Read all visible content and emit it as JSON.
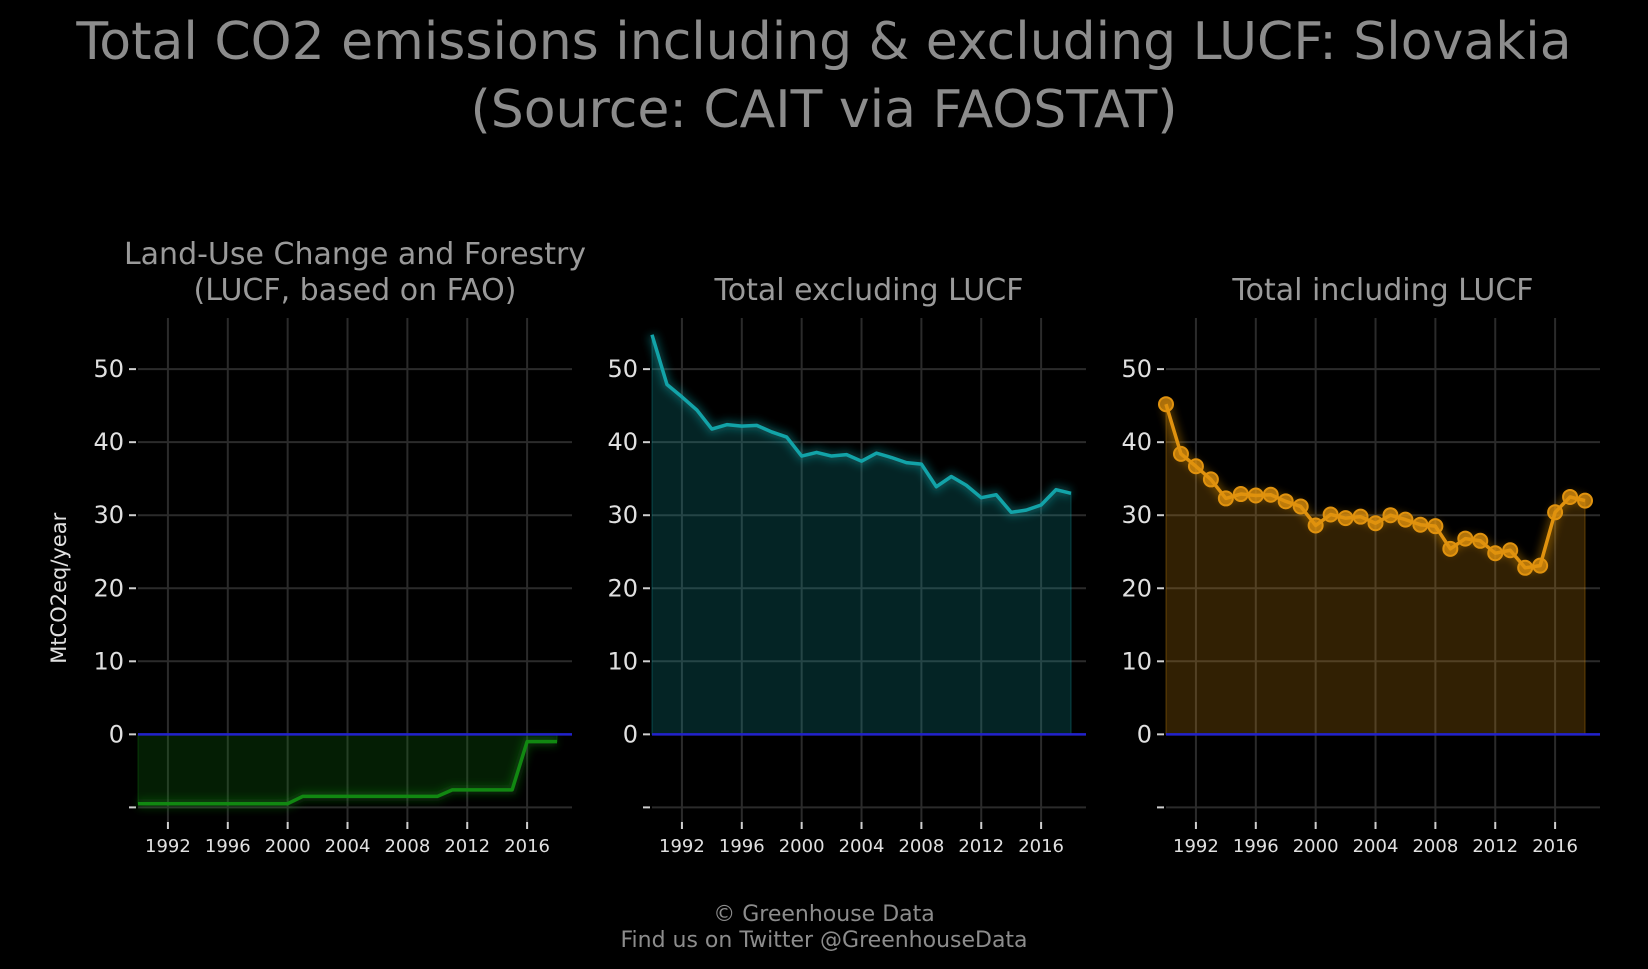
{
  "title": {
    "line1": "Total CO2 emissions including & excluding LUCF: Slovakia",
    "line2": "(Source: CAIT via FAOSTAT)"
  },
  "footer": {
    "line1": "© Greenhouse Data",
    "line2": "Find us on Twitter @GreenhouseData"
  },
  "colors": {
    "background": "#000000",
    "grid": "#2b2b2b",
    "zero_line": "#2222cc",
    "lucf": "#118811",
    "excl": "#12a3a8",
    "incl": "#e0920e"
  },
  "chart_data": [
    {
      "type": "area",
      "title_lines": [
        "Land-Use Change and Forestry",
        "(LUCF, based on FAO)"
      ],
      "ylabel": "MtCO2eq/year",
      "xlabel": "",
      "x_ticks": [
        1992,
        1996,
        2000,
        2004,
        2008,
        2012,
        2016
      ],
      "y_ticks": [
        -10,
        0,
        10,
        20,
        30,
        40,
        50
      ],
      "y_tick_labels": [
        "\u0010",
        "0",
        "10",
        "20",
        "30",
        "40",
        "50"
      ],
      "ylim": [
        -12,
        57
      ],
      "xlim": [
        1990,
        2019
      ],
      "grid": true,
      "markers": false,
      "series": [
        {
          "x": [
            1990,
            1991,
            1992,
            1993,
            1994,
            1995,
            1996,
            1997,
            1998,
            1999,
            2000,
            2001,
            2002,
            2003,
            2004,
            2005,
            2006,
            2007,
            2008,
            2009,
            2010,
            2011,
            2012,
            2013,
            2014,
            2015,
            2016,
            2017,
            2018
          ],
          "values": [
            -9.5,
            -9.5,
            -9.5,
            -9.5,
            -9.5,
            -9.5,
            -9.5,
            -9.5,
            -9.5,
            -9.5,
            -9.5,
            -8.5,
            -8.5,
            -8.5,
            -8.5,
            -8.5,
            -8.5,
            -8.5,
            -8.5,
            -8.5,
            -8.5,
            -7.6,
            -7.6,
            -7.6,
            -7.6,
            -7.6,
            -1.0,
            -1.0,
            -1.0
          ]
        }
      ]
    },
    {
      "type": "area",
      "title_lines": [
        "Total excluding LUCF"
      ],
      "ylabel": "",
      "xlabel": "",
      "x_ticks": [
        1992,
        1996,
        2000,
        2004,
        2008,
        2012,
        2016
      ],
      "y_ticks": [
        -10,
        0,
        10,
        20,
        30,
        40,
        50
      ],
      "y_tick_labels": [
        "\u0010",
        "0",
        "10",
        "20",
        "30",
        "40",
        "50"
      ],
      "ylim": [
        -12,
        57
      ],
      "xlim": [
        1990,
        2019
      ],
      "grid": true,
      "markers": false,
      "series": [
        {
          "x": [
            1990,
            1991,
            1992,
            1993,
            1994,
            1995,
            1996,
            1997,
            1998,
            1999,
            2000,
            2001,
            2002,
            2003,
            2004,
            2005,
            2006,
            2007,
            2008,
            2009,
            2010,
            2011,
            2012,
            2013,
            2014,
            2015,
            2016,
            2017,
            2018
          ],
          "values": [
            54.7,
            47.9,
            46.2,
            44.4,
            41.8,
            42.4,
            42.2,
            42.3,
            41.4,
            40.7,
            38.1,
            38.6,
            38.1,
            38.3,
            37.4,
            38.5,
            37.9,
            37.2,
            37.0,
            33.9,
            35.3,
            34.1,
            32.4,
            32.8,
            30.4,
            30.7,
            31.4,
            33.5,
            33.0
          ]
        }
      ]
    },
    {
      "type": "area",
      "title_lines": [
        "Total including LUCF"
      ],
      "ylabel": "",
      "xlabel": "",
      "x_ticks": [
        1992,
        1996,
        2000,
        2004,
        2008,
        2012,
        2016
      ],
      "y_ticks": [
        -10,
        0,
        10,
        20,
        30,
        40,
        50
      ],
      "y_tick_labels": [
        "\u0010",
        "0",
        "10",
        "20",
        "30",
        "40",
        "50"
      ],
      "ylim": [
        -12,
        57
      ],
      "xlim": [
        1990,
        2019
      ],
      "grid": true,
      "markers": true,
      "series": [
        {
          "x": [
            1990,
            1991,
            1992,
            1993,
            1994,
            1995,
            1996,
            1997,
            1998,
            1999,
            2000,
            2001,
            2002,
            2003,
            2004,
            2005,
            2006,
            2007,
            2008,
            2009,
            2010,
            2011,
            2012,
            2013,
            2014,
            2015,
            2016,
            2017,
            2018
          ],
          "values": [
            45.2,
            38.4,
            36.7,
            34.9,
            32.3,
            32.9,
            32.7,
            32.8,
            31.9,
            31.2,
            28.6,
            30.1,
            29.6,
            29.8,
            28.9,
            30.0,
            29.4,
            28.7,
            28.5,
            25.4,
            26.8,
            26.5,
            24.8,
            25.2,
            22.8,
            23.1,
            30.4,
            32.5,
            32.0
          ]
        }
      ]
    }
  ]
}
